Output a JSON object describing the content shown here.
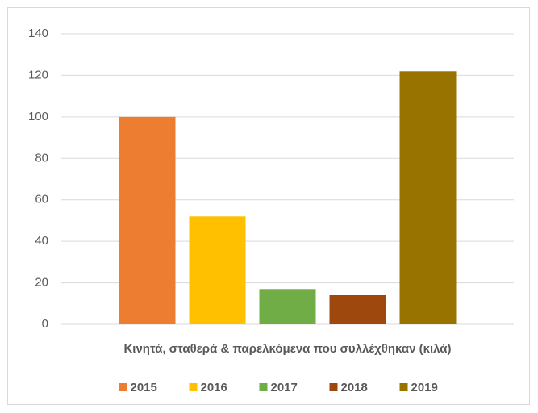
{
  "chart_data": {
    "type": "bar",
    "categories": [
      "Κινητά, σταθερά & παρελκόμενα που συλλέχθηκαν (κιλά)"
    ],
    "series": [
      {
        "name": "2015",
        "color": "#ed7d31",
        "values": [
          100
        ]
      },
      {
        "name": "2016",
        "color": "#ffc000",
        "values": [
          52
        ]
      },
      {
        "name": "2017",
        "color": "#70ad47",
        "values": [
          17
        ]
      },
      {
        "name": "2018",
        "color": "#9e480e",
        "values": [
          14
        ]
      },
      {
        "name": "2019",
        "color": "#997300",
        "values": [
          122
        ]
      }
    ],
    "ylim": [
      0,
      140
    ],
    "yticks": [
      0,
      20,
      40,
      60,
      80,
      100,
      120,
      140
    ],
    "grid": true,
    "legend": "bottom"
  }
}
